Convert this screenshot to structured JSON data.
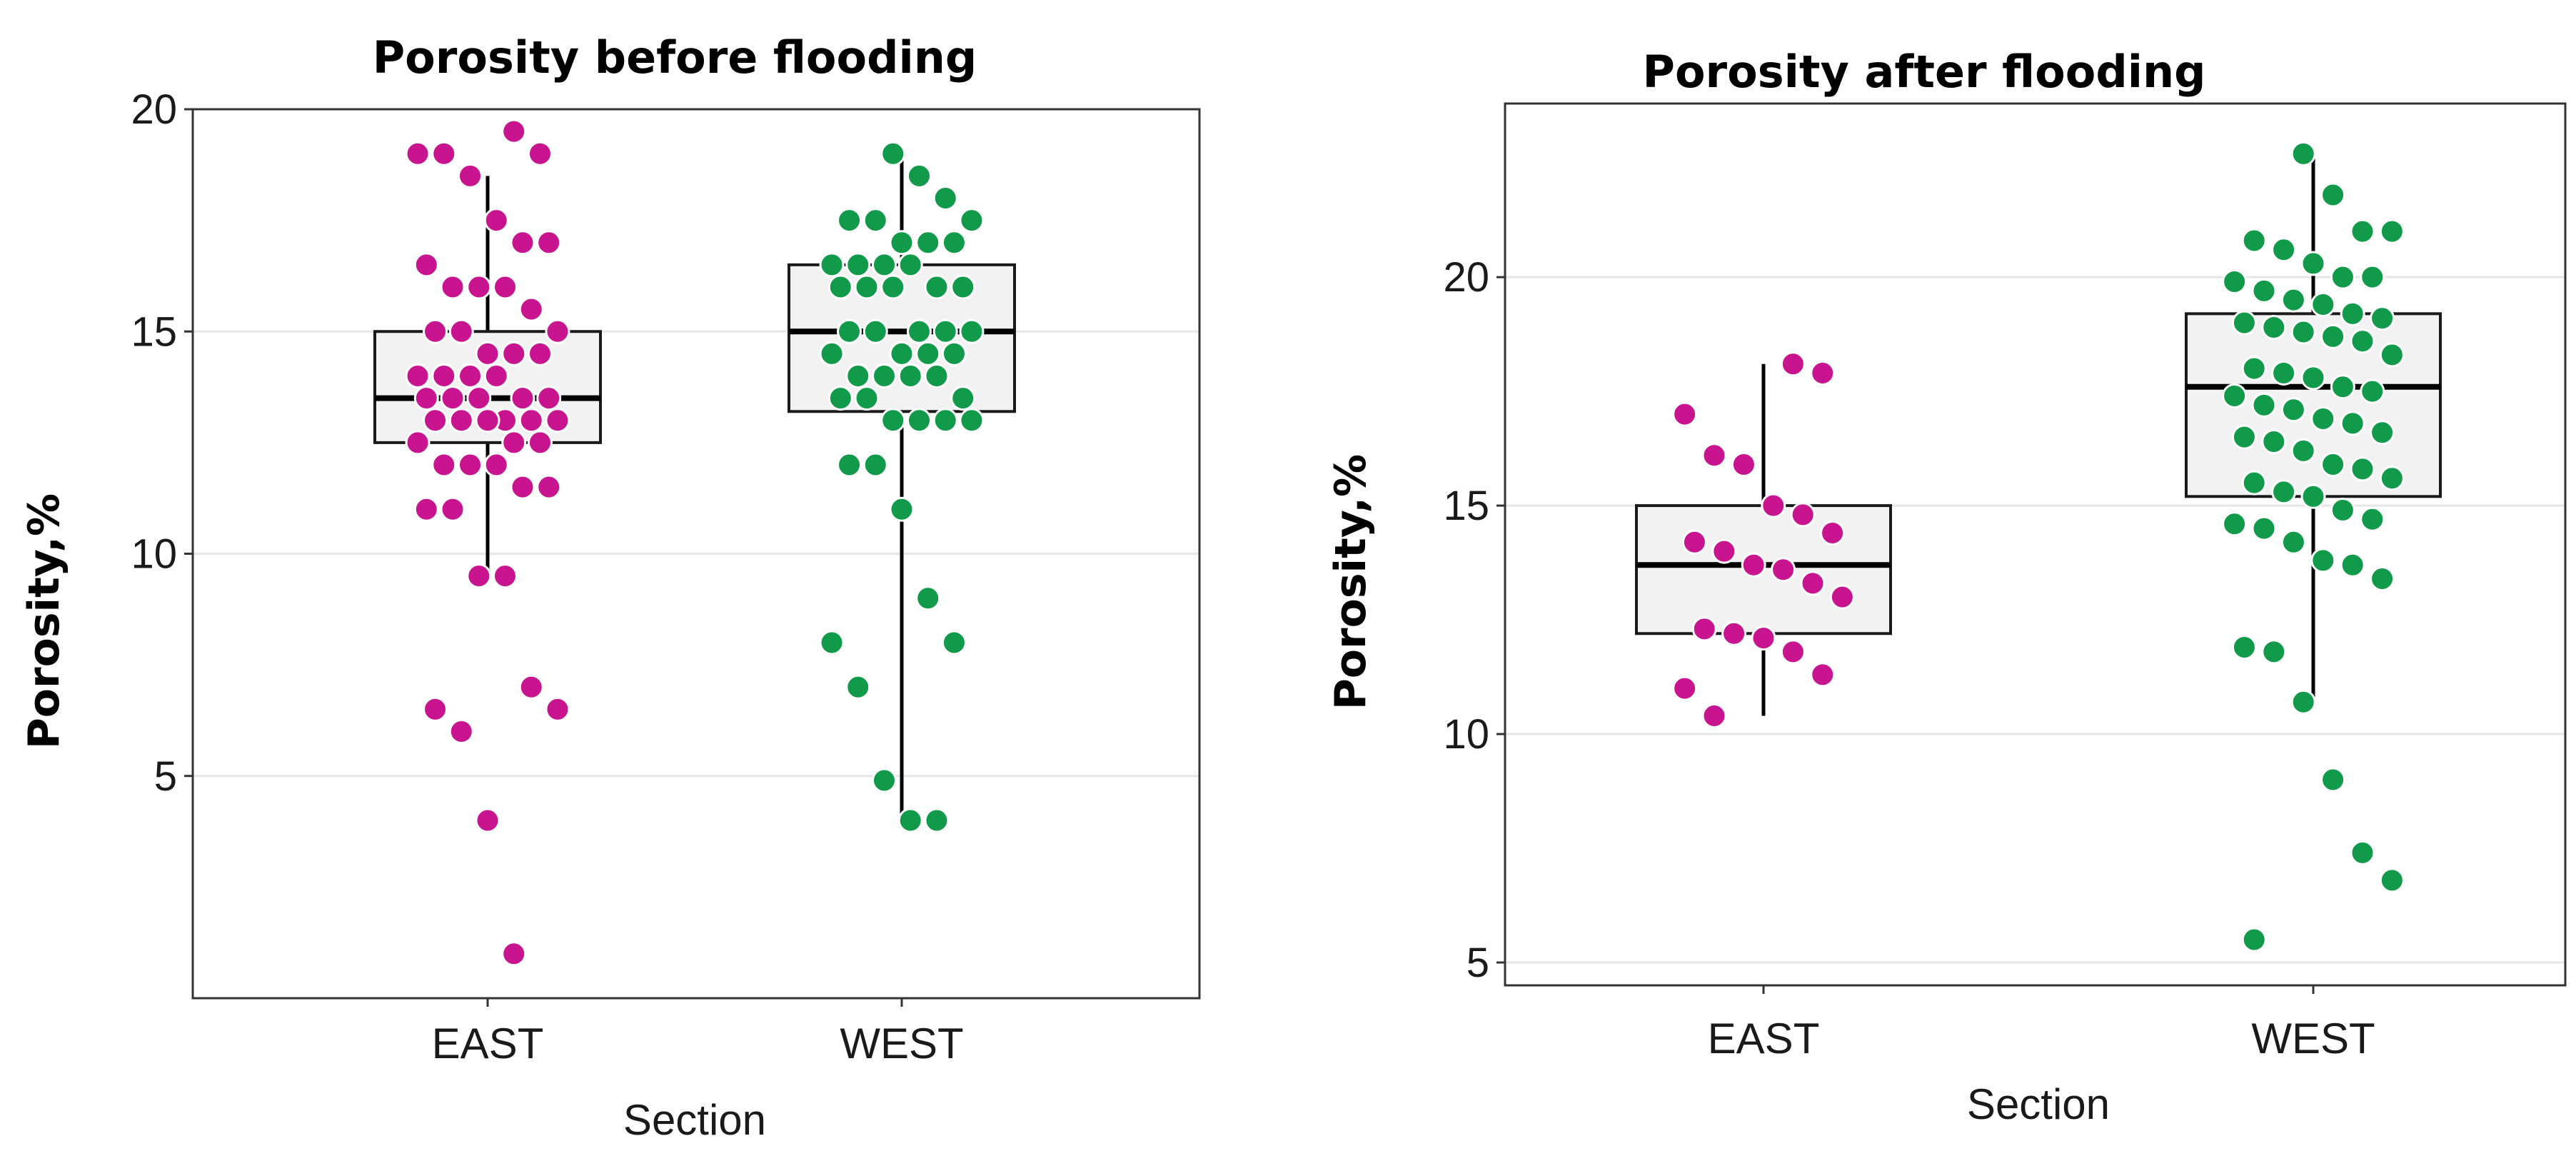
{
  "chart_data": [
    {
      "type": "box",
      "title": "Porosity before flooding",
      "xlabel": "Section",
      "ylabel": "Porosity,%",
      "categories": [
        "EAST",
        "WEST"
      ],
      "yticks": [
        5,
        10,
        15,
        20
      ],
      "ylim": [
        0,
        20
      ],
      "grid": true,
      "series": [
        {
          "name": "EAST",
          "color": "#c8158f",
          "box": {
            "lower_whisker": 9.5,
            "q1": 12.5,
            "median": 13.5,
            "q3": 15,
            "upper_whisker": 18.5
          },
          "points": [
            19.5,
            19,
            19,
            19,
            18.5,
            17.5,
            17,
            17,
            16.5,
            16,
            16,
            16,
            15.5,
            15,
            15,
            15,
            14.5,
            14.5,
            14.5,
            14,
            14,
            14,
            14,
            13.5,
            13.5,
            13.5,
            13.5,
            13.5,
            13,
            13,
            13,
            13,
            13,
            13,
            12.5,
            12.5,
            12.5,
            12,
            12,
            12,
            11.5,
            11.5,
            11,
            11,
            9.5,
            9.5,
            7,
            6.5,
            6.5,
            6,
            4,
            1
          ]
        },
        {
          "name": "WEST",
          "color": "#119a4a",
          "box": {
            "lower_whisker": 4,
            "q1": 13.2,
            "median": 15,
            "q3": 16.5,
            "upper_whisker": 19
          },
          "points": [
            19,
            18.5,
            18,
            17.5,
            17.5,
            17.5,
            17,
            17,
            17,
            16.5,
            16.5,
            16.5,
            16.5,
            16,
            16,
            16,
            16,
            16,
            15,
            15,
            15,
            15,
            15,
            14.5,
            14.5,
            14.5,
            14.5,
            14,
            14,
            14,
            14,
            13.5,
            13.5,
            13.5,
            13,
            13,
            13,
            13,
            12,
            12,
            11,
            9,
            8,
            8,
            7,
            4.9,
            4,
            4
          ]
        }
      ]
    },
    {
      "type": "box",
      "title": "Porosity after flooding",
      "xlabel": "Section",
      "ylabel": "Porosity,%",
      "categories": [
        "EAST",
        "WEST"
      ],
      "yticks": [
        5,
        10,
        15,
        20
      ],
      "ylim": [
        4.5,
        23.8
      ],
      "grid": true,
      "series": [
        {
          "name": "EAST",
          "color": "#c8158f",
          "box": {
            "lower_whisker": 10.4,
            "q1": 12.2,
            "median": 13.7,
            "q3": 15,
            "upper_whisker": 18.1
          },
          "points": [
            18.1,
            17.9,
            17,
            16.1,
            15.9,
            15,
            14.8,
            14.4,
            14.2,
            14,
            13.7,
            13.6,
            13.3,
            13,
            12.3,
            12.2,
            12.1,
            11.8,
            11.3,
            11,
            10.4
          ]
        },
        {
          "name": "WEST",
          "color": "#119a4a",
          "box": {
            "lower_whisker": 10.7,
            "q1": 15.2,
            "median": 17.6,
            "q3": 19.2,
            "upper_whisker": 22.7
          },
          "points": [
            22.7,
            21.8,
            21,
            21,
            20.8,
            20.6,
            20.3,
            20,
            20,
            19.9,
            19.7,
            19.5,
            19.4,
            19.2,
            19.1,
            19,
            18.9,
            18.8,
            18.7,
            18.6,
            18.3,
            18,
            17.9,
            17.8,
            17.6,
            17.5,
            17.4,
            17.2,
            17.1,
            16.9,
            16.8,
            16.6,
            16.5,
            16.4,
            16.2,
            15.9,
            15.8,
            15.6,
            15.5,
            15.3,
            15.2,
            14.9,
            14.7,
            14.6,
            14.5,
            14.2,
            13.8,
            13.7,
            13.4,
            11.9,
            11.8,
            10.7,
            9,
            7.4,
            6.8,
            5.5
          ]
        }
      ]
    }
  ]
}
